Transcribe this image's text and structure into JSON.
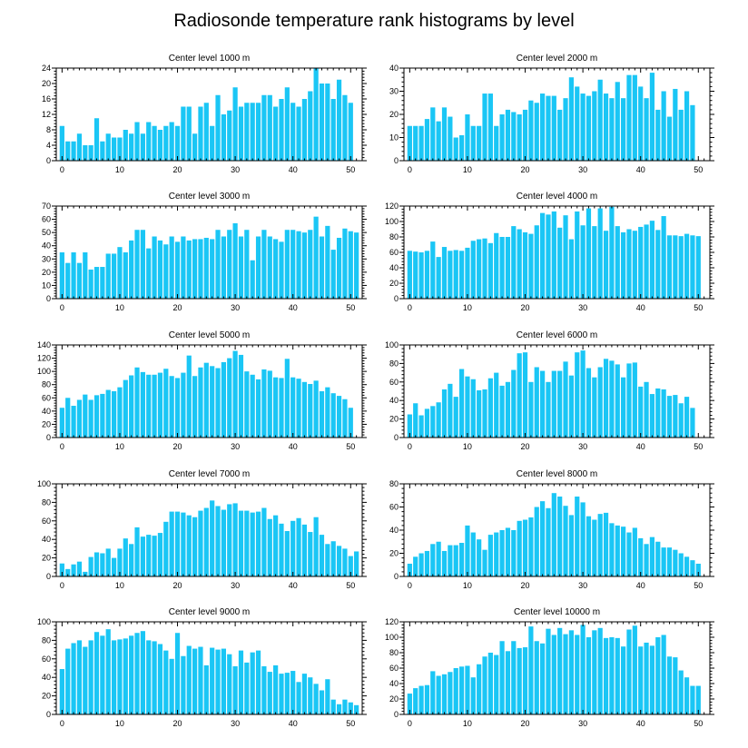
{
  "title": "Radiosonde temperature rank histograms by level",
  "colors": {
    "bar": "#1ac6f5",
    "axis": "#000000",
    "background": "#ffffff"
  },
  "chart_data": [
    {
      "type": "bar",
      "title": "Center level 1000 m",
      "xlim": [
        -1,
        52
      ],
      "ylim": [
        0,
        24
      ],
      "xticks": [
        0,
        10,
        20,
        30,
        40,
        50
      ],
      "yticks": [
        0,
        4,
        8,
        12,
        16,
        20,
        24
      ],
      "yaxis_side": "left",
      "values": [
        9,
        5,
        5,
        7,
        4,
        4,
        11,
        5,
        7,
        6,
        6,
        8,
        7,
        10,
        7,
        10,
        9,
        8,
        9,
        10,
        9,
        14,
        14,
        7,
        14,
        15,
        9,
        17,
        12,
        13,
        19,
        14,
        15,
        15,
        15,
        17,
        17,
        14,
        16,
        19,
        15,
        14,
        16,
        18,
        24,
        20,
        20,
        16,
        21,
        17,
        15
      ]
    },
    {
      "type": "bar",
      "title": "Center level 2000 m",
      "xlim": [
        -1,
        52
      ],
      "ylim": [
        0,
        40
      ],
      "xticks": [
        0,
        10,
        20,
        30,
        40,
        50
      ],
      "yticks": [
        0,
        10,
        20,
        30,
        40
      ],
      "yaxis_side": "right",
      "values": [
        15,
        15,
        15,
        18,
        23,
        17,
        23,
        19,
        10,
        11,
        20,
        15,
        15,
        29,
        29,
        15,
        20,
        22,
        21,
        20,
        22,
        26,
        25,
        29,
        28,
        28,
        22,
        27,
        36,
        32,
        29,
        28,
        30,
        35,
        29,
        27,
        34,
        27,
        37,
        37,
        32,
        27,
        38,
        22,
        30,
        19,
        31,
        22,
        30,
        24
      ]
    },
    {
      "type": "bar",
      "title": "Center level 3000 m",
      "xlim": [
        -1,
        52
      ],
      "ylim": [
        0,
        70
      ],
      "xticks": [
        0,
        10,
        20,
        30,
        40,
        50
      ],
      "yticks": [
        0,
        10,
        20,
        30,
        40,
        50,
        60,
        70
      ],
      "yaxis_side": "left",
      "values": [
        35,
        27,
        35,
        27,
        35,
        22,
        24,
        24,
        34,
        34,
        39,
        35,
        44,
        52,
        52,
        38,
        47,
        44,
        41,
        47,
        43,
        47,
        44,
        45,
        45,
        46,
        45,
        52,
        47,
        52,
        57,
        47,
        52,
        29,
        47,
        52,
        47,
        45,
        43,
        52,
        52,
        51,
        50,
        52,
        62,
        47,
        55,
        37,
        46,
        53,
        51,
        50
      ]
    },
    {
      "type": "bar",
      "title": "Center level 4000 m",
      "xlim": [
        -1,
        52
      ],
      "ylim": [
        0,
        120
      ],
      "xticks": [
        0,
        10,
        20,
        30,
        40,
        50
      ],
      "yticks": [
        0,
        20,
        40,
        60,
        80,
        100,
        120
      ],
      "yaxis_side": "right",
      "values": [
        62,
        61,
        60,
        62,
        74,
        54,
        67,
        62,
        63,
        62,
        66,
        75,
        77,
        78,
        72,
        85,
        80,
        80,
        94,
        90,
        86,
        84,
        95,
        111,
        109,
        113,
        92,
        108,
        77,
        113,
        95,
        117,
        94,
        117,
        88,
        119,
        94,
        86,
        90,
        88,
        93,
        96,
        101,
        89,
        107,
        82,
        82,
        81,
        84,
        82,
        81
      ]
    },
    {
      "type": "bar",
      "title": "Center level 5000 m",
      "xlim": [
        -1,
        52
      ],
      "ylim": [
        0,
        140
      ],
      "xticks": [
        0,
        10,
        20,
        30,
        40,
        50
      ],
      "yticks": [
        0,
        20,
        40,
        60,
        80,
        100,
        120,
        140
      ],
      "yaxis_side": "left",
      "values": [
        45,
        60,
        48,
        57,
        65,
        57,
        64,
        66,
        72,
        70,
        76,
        87,
        94,
        106,
        99,
        95,
        95,
        98,
        104,
        93,
        90,
        98,
        124,
        93,
        106,
        113,
        108,
        105,
        114,
        120,
        131,
        125,
        100,
        95,
        88,
        103,
        101,
        91,
        90,
        119,
        91,
        89,
        84,
        81,
        86,
        70,
        76,
        67,
        63,
        58,
        45
      ]
    },
    {
      "type": "bar",
      "title": "Center level 6000 m",
      "xlim": [
        -1,
        52
      ],
      "ylim": [
        0,
        100
      ],
      "xticks": [
        0,
        10,
        20,
        30,
        40,
        50
      ],
      "yticks": [
        0,
        20,
        40,
        60,
        80,
        100
      ],
      "yaxis_side": "right",
      "values": [
        25,
        37,
        24,
        31,
        34,
        38,
        52,
        58,
        44,
        74,
        66,
        63,
        51,
        52,
        64,
        70,
        56,
        60,
        73,
        91,
        92,
        60,
        76,
        72,
        60,
        72,
        72,
        82,
        67,
        92,
        94,
        75,
        65,
        76,
        85,
        83,
        79,
        65,
        80,
        81,
        55,
        60,
        47,
        53,
        52,
        45,
        46,
        37,
        44,
        32
      ]
    },
    {
      "type": "bar",
      "title": "Center level 7000 m",
      "xlim": [
        -1,
        52
      ],
      "ylim": [
        0,
        100
      ],
      "xticks": [
        0,
        10,
        20,
        30,
        40,
        50
      ],
      "yticks": [
        0,
        20,
        40,
        60,
        80,
        100
      ],
      "yaxis_side": "left",
      "values": [
        14,
        8,
        13,
        16,
        5,
        21,
        26,
        25,
        30,
        20,
        30,
        41,
        35,
        53,
        43,
        45,
        44,
        47,
        59,
        70,
        70,
        69,
        66,
        64,
        71,
        74,
        82,
        76,
        72,
        78,
        79,
        71,
        71,
        69,
        70,
        74,
        62,
        66,
        57,
        49,
        60,
        63,
        56,
        48,
        64,
        45,
        35,
        38,
        33,
        30,
        22,
        27
      ]
    },
    {
      "type": "bar",
      "title": "Center level 8000 m",
      "xlim": [
        -1,
        52
      ],
      "ylim": [
        0,
        80
      ],
      "xticks": [
        0,
        10,
        20,
        30,
        40,
        50
      ],
      "yticks": [
        0,
        20,
        40,
        60,
        80
      ],
      "yaxis_side": "right",
      "values": [
        11,
        17,
        20,
        22,
        28,
        30,
        22,
        27,
        27,
        29,
        44,
        38,
        32,
        23,
        36,
        38,
        40,
        42,
        40,
        48,
        49,
        51,
        60,
        65,
        59,
        72,
        69,
        61,
        53,
        69,
        64,
        52,
        49,
        54,
        55,
        46,
        44,
        43,
        38,
        42,
        33,
        28,
        34,
        30,
        25,
        25,
        23,
        20,
        17,
        14,
        11
      ]
    },
    {
      "type": "bar",
      "title": "Center level 9000 m",
      "xlim": [
        -1,
        52
      ],
      "ylim": [
        0,
        100
      ],
      "xticks": [
        0,
        10,
        20,
        30,
        40,
        50
      ],
      "yticks": [
        0,
        20,
        40,
        60,
        80,
        100
      ],
      "yaxis_side": "left",
      "values": [
        49,
        71,
        77,
        80,
        73,
        80,
        89,
        85,
        92,
        80,
        81,
        82,
        85,
        88,
        90,
        80,
        79,
        76,
        69,
        60,
        88,
        63,
        74,
        71,
        73,
        53,
        72,
        70,
        71,
        65,
        52,
        69,
        56,
        67,
        69,
        52,
        46,
        53,
        44,
        45,
        47,
        35,
        44,
        40,
        33,
        26,
        38,
        16,
        11,
        16,
        13,
        10
      ]
    },
    {
      "type": "bar",
      "title": "Center level 10000 m",
      "xlim": [
        -1,
        52
      ],
      "ylim": [
        0,
        120
      ],
      "xticks": [
        0,
        10,
        20,
        30,
        40,
        50
      ],
      "yticks": [
        0,
        20,
        40,
        60,
        80,
        100,
        120
      ],
      "yaxis_side": "right",
      "values": [
        27,
        34,
        37,
        38,
        56,
        50,
        52,
        55,
        60,
        62,
        63,
        48,
        65,
        75,
        80,
        77,
        95,
        82,
        95,
        86,
        87,
        114,
        95,
        92,
        111,
        103,
        112,
        104,
        109,
        103,
        116,
        100,
        109,
        112,
        99,
        100,
        99,
        88,
        110,
        115,
        88,
        93,
        89,
        100,
        103,
        75,
        74,
        57,
        48,
        37,
        37
      ]
    }
  ]
}
